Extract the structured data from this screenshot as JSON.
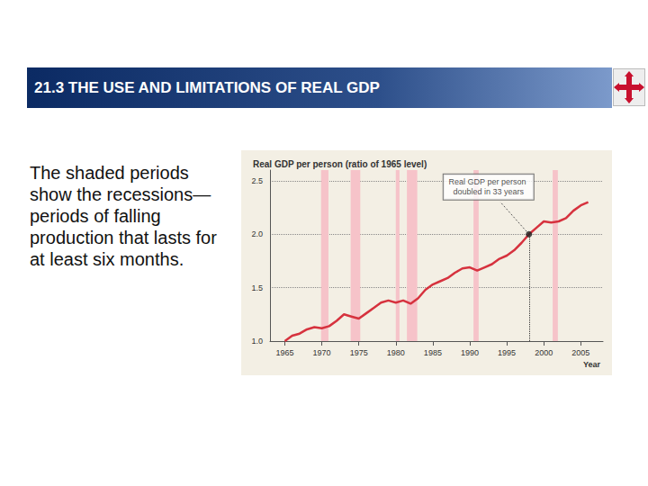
{
  "slide": {
    "title": "21.3 THE USE AND LIMITATIONS OF REAL GDP",
    "body": "The shaded periods show the recessions—periods of falling production that lasts for at least six months."
  },
  "chart_data": {
    "type": "line",
    "title": "Real GDP per person (ratio of 1965 level)",
    "x_label": "Year",
    "x": [
      1965,
      1966,
      1967,
      1968,
      1969,
      1970,
      1971,
      1972,
      1973,
      1974,
      1975,
      1976,
      1977,
      1978,
      1979,
      1980,
      1981,
      1982,
      1983,
      1984,
      1985,
      1986,
      1987,
      1988,
      1989,
      1990,
      1991,
      1992,
      1993,
      1994,
      1995,
      1996,
      1997,
      1998,
      1999,
      2000,
      2001,
      2002,
      2003,
      2004,
      2005,
      2006
    ],
    "values": [
      1.0,
      1.05,
      1.07,
      1.11,
      1.13,
      1.12,
      1.14,
      1.19,
      1.25,
      1.23,
      1.21,
      1.26,
      1.31,
      1.36,
      1.38,
      1.36,
      1.38,
      1.35,
      1.4,
      1.48,
      1.53,
      1.56,
      1.59,
      1.64,
      1.68,
      1.69,
      1.66,
      1.69,
      1.72,
      1.77,
      1.8,
      1.85,
      1.92,
      2.0,
      2.06,
      2.12,
      2.11,
      2.12,
      2.15,
      2.22,
      2.27,
      2.3
    ],
    "color": "#d6323e",
    "xlim": [
      1963,
      2008
    ],
    "xticks": [
      1965,
      1970,
      1975,
      1980,
      1985,
      1990,
      1995,
      2000,
      2005
    ],
    "ylim": [
      1.0,
      2.6
    ],
    "yticks": [
      {
        "value": 1.0,
        "label": "1.0"
      },
      {
        "value": 1.5,
        "label": "1.5"
      },
      {
        "value": 2.0,
        "label": "2.0"
      },
      {
        "value": 2.5,
        "label": "2.5"
      }
    ],
    "grid": true,
    "recessions": [
      {
        "start": 1969.9,
        "end": 1970.9
      },
      {
        "start": 1973.9,
        "end": 1975.2
      },
      {
        "start": 1980.0,
        "end": 1980.5
      },
      {
        "start": 1981.5,
        "end": 1982.9
      },
      {
        "start": 1990.5,
        "end": 1991.2
      },
      {
        "start": 2001.2,
        "end": 2001.9
      }
    ],
    "annotations": [
      {
        "text": "Real GDP per person doubled in 33 years",
        "x": 1998,
        "y": 2.0
      }
    ]
  }
}
